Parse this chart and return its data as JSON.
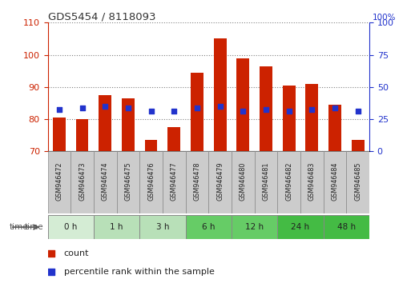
{
  "title": "GDS5454 / 8118093",
  "samples": [
    "GSM946472",
    "GSM946473",
    "GSM946474",
    "GSM946475",
    "GSM946476",
    "GSM946477",
    "GSM946478",
    "GSM946479",
    "GSM946480",
    "GSM946481",
    "GSM946482",
    "GSM946483",
    "GSM946484",
    "GSM946485"
  ],
  "count_values": [
    80.5,
    80.0,
    87.5,
    86.5,
    73.5,
    77.5,
    94.5,
    105.0,
    99.0,
    96.5,
    90.5,
    91.0,
    84.5,
    73.5
  ],
  "percentile_values": [
    83.0,
    83.5,
    84.0,
    83.5,
    82.5,
    82.5,
    83.5,
    84.0,
    82.5,
    83.0,
    82.5,
    83.0,
    83.5,
    82.5
  ],
  "ylim_left": [
    70,
    110
  ],
  "ylim_right": [
    0,
    100
  ],
  "yticks_left": [
    70,
    80,
    90,
    100,
    110
  ],
  "yticks_right": [
    0,
    25,
    50,
    75,
    100
  ],
  "time_groups": [
    {
      "label": "0 h",
      "start": 0,
      "end": 1,
      "color": "#d4ecd4"
    },
    {
      "label": "1 h",
      "start": 2,
      "end": 3,
      "color": "#b8e0b8"
    },
    {
      "label": "3 h",
      "start": 4,
      "end": 5,
      "color": "#b8e0b8"
    },
    {
      "label": "6 h",
      "start": 6,
      "end": 7,
      "color": "#66cc66"
    },
    {
      "label": "12 h",
      "start": 8,
      "end": 9,
      "color": "#66cc66"
    },
    {
      "label": "24 h",
      "start": 10,
      "end": 11,
      "color": "#44bb44"
    },
    {
      "label": "48 h",
      "start": 12,
      "end": 13,
      "color": "#44bb44"
    }
  ],
  "bar_color": "#cc2200",
  "dot_color": "#2233cc",
  "bar_width": 0.55,
  "bar_bottom": 70,
  "legend_count_label": "count",
  "legend_pct_label": "percentile rank within the sample",
  "bg_color": "#ffffff",
  "axis_color_left": "#cc2200",
  "axis_color_right": "#2233cc",
  "sample_bg_color": "#cccccc"
}
